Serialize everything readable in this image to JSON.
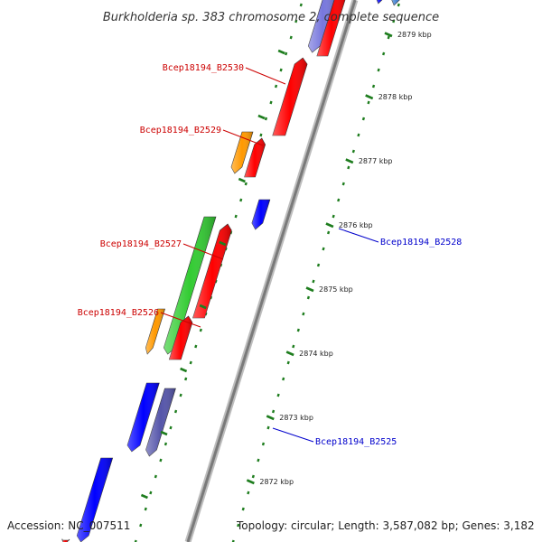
{
  "title": "Burkholderia sp. 383 chromosome 2, complete sequence",
  "accession": "Accession: NC_007511",
  "topology": "Topology: circular; Length: 3,587,082 bp; Genes: 3,182",
  "colors": {
    "backbone": "#8c8c8c",
    "tick": "#1e7d1e",
    "label_left": "#cc0000",
    "label_right": "#0000cc",
    "red": "#ff0000",
    "blue": "#0000ff",
    "green": "#33cc33",
    "orange": "#ff9900",
    "purple": "#5555aa",
    "lavender": "#7777dd"
  },
  "kbp_ticks": [
    "2879 kbp",
    "2878 kbp",
    "2877 kbp",
    "2876 kbp",
    "2875 kbp",
    "2874 kbp",
    "2873 kbp",
    "2872 kbp"
  ],
  "gene_labels_left": [
    "Bcep18194_B2530",
    "Bcep18194_B2529",
    "Bcep18194_B2527",
    "Bcep18194_B2526"
  ],
  "gene_labels_right": [
    "Bcep18194_B2528",
    "Bcep18194_B2525"
  ]
}
